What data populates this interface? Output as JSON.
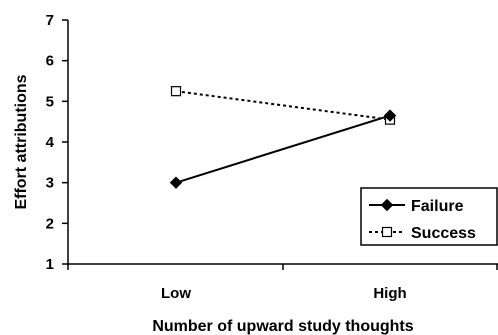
{
  "chart_data": {
    "type": "line",
    "title": "",
    "xlabel": "Number of upward study thoughts",
    "ylabel": "Effort attributions",
    "categories": [
      "Low",
      "High"
    ],
    "ylim": [
      1,
      7
    ],
    "yticks": [
      "1",
      "2",
      "3",
      "4",
      "5",
      "6",
      "7"
    ],
    "grid": false,
    "legend_position": "bottom-right",
    "series": [
      {
        "name": "Failure",
        "values": [
          3.0,
          4.65
        ],
        "line_style": "solid",
        "marker": "filled-diamond",
        "color": "#000000"
      },
      {
        "name": "Success",
        "values": [
          5.25,
          4.55
        ],
        "line_style": "dotted",
        "marker": "open-square",
        "color": "#000000"
      }
    ]
  }
}
